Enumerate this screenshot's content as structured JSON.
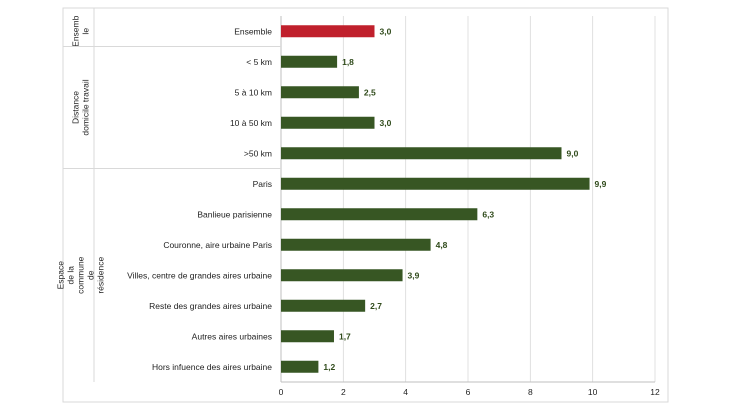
{
  "chart_data": {
    "type": "bar",
    "orientation": "horizontal",
    "groups": [
      {
        "label_lines": [
          "Ensemb",
          "le"
        ],
        "categories": [
          "Ensemble"
        ]
      },
      {
        "label_lines": [
          "Distance",
          "domicile travail"
        ],
        "categories": [
          "< 5 km",
          "5 à 10 km",
          "10 à 50 km",
          ">50 km"
        ]
      },
      {
        "label_lines": [
          "Espace",
          "de la",
          "commune",
          "de",
          "résidence"
        ],
        "categories": [
          "Paris",
          "Banlieue parisienne",
          "Couronne, aire urbaine Paris",
          "Villes, centre de grandes aires urbaine",
          "Reste des grandes aires urbaine",
          "Autres aires urbaines",
          "Hors infuence des aires urbaine"
        ]
      }
    ],
    "categories": [
      "Ensemble",
      "< 5 km",
      "5 à 10 km",
      "10 à 50 km",
      ">50 km",
      "Paris",
      "Banlieue parisienne",
      "Couronne, aire urbaine Paris",
      "Villes, centre de grandes aires urbaine",
      "Reste des grandes aires urbaine",
      "Autres aires urbaines",
      "Hors infuence des aires urbaine"
    ],
    "values": [
      3.0,
      1.8,
      2.5,
      3.0,
      9.0,
      9.9,
      6.3,
      4.8,
      3.9,
      2.7,
      1.7,
      1.2
    ],
    "value_labels": [
      "3,0",
      "1,8",
      "2,5",
      "3,0",
      "9,0",
      "9,9",
      "6,3",
      "4,8",
      "3,9",
      "2,7",
      "1,7",
      "1,2"
    ],
    "highlight_index": 0,
    "colors": {
      "bar": "#375623",
      "highlight": "#c0202c",
      "value_label": "#2f4a1a",
      "grid": "#d9d9d9"
    },
    "xlim": [
      0,
      12
    ],
    "x_ticks": [
      0,
      2,
      4,
      6,
      8,
      10,
      12
    ],
    "grid": true,
    "legend": "none",
    "title": "",
    "xlabel": "",
    "ylabel": ""
  }
}
